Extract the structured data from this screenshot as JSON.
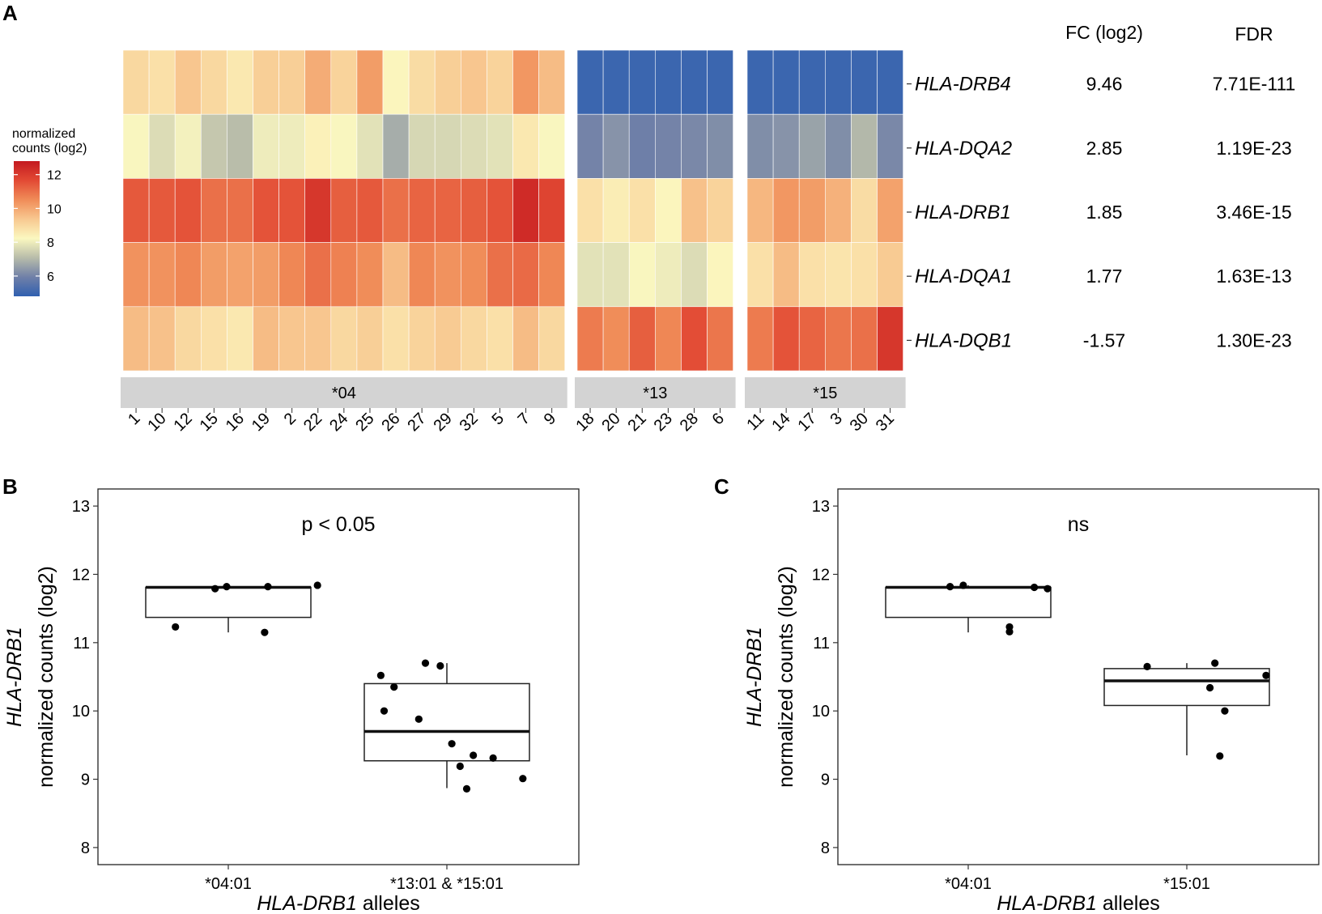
{
  "panels": {
    "a": "A",
    "b": "B",
    "c": "C"
  },
  "colors": {
    "scale": [
      "#3060b0",
      "#7080a8",
      "#b8bcaa",
      "#fbf8c0",
      "#f8c890",
      "#f08c58",
      "#e24a34",
      "#c41a20"
    ],
    "strip": "#d3d3d3",
    "box": "#000000",
    "point": "#000000"
  },
  "chart_data": [
    {
      "type": "heatmap",
      "legend": {
        "title_lines": [
          "normalized",
          "counts (log2)"
        ],
        "ticks": [
          12,
          10,
          8,
          6
        ],
        "range": [
          4.8,
          12.8
        ]
      },
      "table_headers": {
        "fc": "FC (log2)",
        "fdr": "FDR"
      },
      "rows": [
        {
          "gene": "HLA-DRB4",
          "fc": "9.46",
          "fdr": "7.71E-111"
        },
        {
          "gene": "HLA-DQA2",
          "fc": "2.85",
          "fdr": "1.19E-23"
        },
        {
          "gene": "HLA-DRB1",
          "fc": "1.85",
          "fdr": "3.46E-15"
        },
        {
          "gene": "HLA-DQA1",
          "fc": "1.77",
          "fdr": "1.63E-13"
        },
        {
          "gene": "HLA-DQB1",
          "fc": "-1.57",
          "fdr": "1.30E-23"
        }
      ],
      "groups": [
        {
          "label": "*04",
          "samples": [
            "1",
            "10",
            "12",
            "15",
            "16",
            "19",
            "2",
            "22",
            "24",
            "25",
            "26",
            "27",
            "29",
            "32",
            "5",
            "7",
            "9"
          ],
          "values": [
            [
              9.0,
              8.8,
              9.4,
              9.0,
              8.6,
              9.2,
              9.2,
              9.9,
              9.1,
              10.2,
              8.3,
              8.9,
              9.2,
              9.4,
              9.1,
              10.3,
              9.6
            ],
            [
              8.2,
              7.7,
              8.1,
              7.3,
              7.1,
              8.0,
              8.0,
              8.4,
              8.2,
              7.8,
              6.8,
              7.6,
              7.6,
              7.7,
              7.8,
              8.6,
              8.2
            ],
            [
              11.4,
              11.4,
              11.5,
              11.0,
              11.0,
              11.5,
              11.5,
              12.1,
              11.3,
              11.4,
              11.0,
              11.2,
              11.2,
              11.3,
              11.5,
              12.4,
              11.8
            ],
            [
              10.4,
              10.4,
              10.6,
              10.2,
              10.1,
              10.2,
              10.6,
              11.0,
              10.7,
              10.5,
              9.6,
              10.6,
              10.4,
              10.5,
              11.0,
              11.1,
              10.6
            ],
            [
              9.6,
              9.5,
              9.0,
              8.8,
              8.6,
              9.6,
              9.4,
              9.4,
              9.0,
              9.2,
              8.8,
              9.1,
              9.3,
              9.0,
              8.8,
              9.6,
              9.0
            ]
          ]
        },
        {
          "label": "*13",
          "samples": [
            "18",
            "20",
            "21",
            "23",
            "28",
            "6"
          ],
          "values": [
            [
              5.0,
              5.0,
              5.0,
              5.0,
              5.0,
              5.0
            ],
            [
              6.0,
              6.3,
              5.9,
              6.0,
              6.1,
              6.2
            ],
            [
              8.8,
              8.5,
              8.8,
              8.3,
              9.5,
              9.1
            ],
            [
              7.8,
              7.8,
              8.2,
              8.0,
              7.7,
              8.3
            ],
            [
              10.8,
              10.5,
              11.3,
              10.6,
              11.6,
              10.9
            ]
          ]
        },
        {
          "label": "*15",
          "samples": [
            "11",
            "14",
            "17",
            "3",
            "30",
            "31"
          ],
          "values": [
            [
              5.0,
              5.0,
              5.0,
              5.0,
              5.0,
              5.0
            ],
            [
              6.2,
              6.3,
              6.6,
              6.2,
              7.0,
              6.1
            ],
            [
              9.7,
              10.3,
              10.2,
              9.8,
              8.9,
              10.1
            ],
            [
              8.8,
              9.6,
              8.8,
              8.7,
              8.8,
              9.3
            ],
            [
              10.8,
              11.5,
              11.2,
              10.9,
              11.0,
              12.1
            ]
          ]
        }
      ]
    },
    {
      "type": "box",
      "annotation": "p < 0.05",
      "ylabel_gene": "HLA-DRB1",
      "ylabel": "normalized counts (log2)",
      "xlabel_gene": "HLA-DRB1",
      "xlabel_rest": " alleles",
      "ylim": [
        7.75,
        13.25
      ],
      "yticks": [
        8,
        9,
        10,
        11,
        12,
        13
      ],
      "groups": [
        {
          "label": "*04:01",
          "q1": 11.37,
          "median": 11.81,
          "q3": 11.81,
          "whisker_low": 11.15,
          "whisker_high": 11.84,
          "points": [
            [
              -0.32,
              11.23
            ],
            [
              -0.08,
              11.79
            ],
            [
              -0.01,
              11.82
            ],
            [
              0.24,
              11.82
            ],
            [
              0.54,
              11.84
            ],
            [
              0.22,
              11.15
            ]
          ]
        },
        {
          "label": "*13:01 & *15:01",
          "q1": 9.27,
          "median": 9.7,
          "q3": 10.4,
          "whisker_low": 8.87,
          "whisker_high": 10.7,
          "points": [
            [
              -0.4,
              10.52
            ],
            [
              -0.32,
              10.35
            ],
            [
              -0.38,
              10.0
            ],
            [
              -0.17,
              9.88
            ],
            [
              -0.13,
              10.7
            ],
            [
              -0.04,
              10.66
            ],
            [
              0.03,
              9.52
            ],
            [
              0.08,
              9.19
            ],
            [
              0.16,
              9.35
            ],
            [
              0.12,
              8.86
            ],
            [
              0.28,
              9.31
            ],
            [
              0.46,
              9.01
            ]
          ]
        }
      ]
    },
    {
      "type": "box",
      "annotation": "ns",
      "ylabel_gene": "HLA-DRB1",
      "ylabel": "normalized counts (log2)",
      "xlabel_gene": "HLA-DRB1",
      "xlabel_rest": " alleles",
      "ylim": [
        7.75,
        13.25
      ],
      "yticks": [
        8,
        9,
        10,
        11,
        12,
        13
      ],
      "groups": [
        {
          "label": "*04:01",
          "q1": 11.37,
          "median": 11.81,
          "q3": 11.81,
          "whisker_low": 11.15,
          "whisker_high": 11.84,
          "points": [
            [
              -0.11,
              11.82
            ],
            [
              -0.03,
              11.84
            ],
            [
              0.25,
              11.23
            ],
            [
              0.25,
              11.16
            ],
            [
              0.4,
              11.81
            ],
            [
              0.48,
              11.79
            ]
          ]
        },
        {
          "label": "*15:01",
          "q1": 10.08,
          "median": 10.44,
          "q3": 10.62,
          "whisker_low": 9.35,
          "whisker_high": 10.7,
          "points": [
            [
              -0.24,
              10.65
            ],
            [
              0.14,
              10.34
            ],
            [
              0.17,
              10.7
            ],
            [
              0.2,
              9.34
            ],
            [
              0.23,
              10.0
            ],
            [
              0.48,
              10.52
            ]
          ]
        }
      ]
    }
  ]
}
